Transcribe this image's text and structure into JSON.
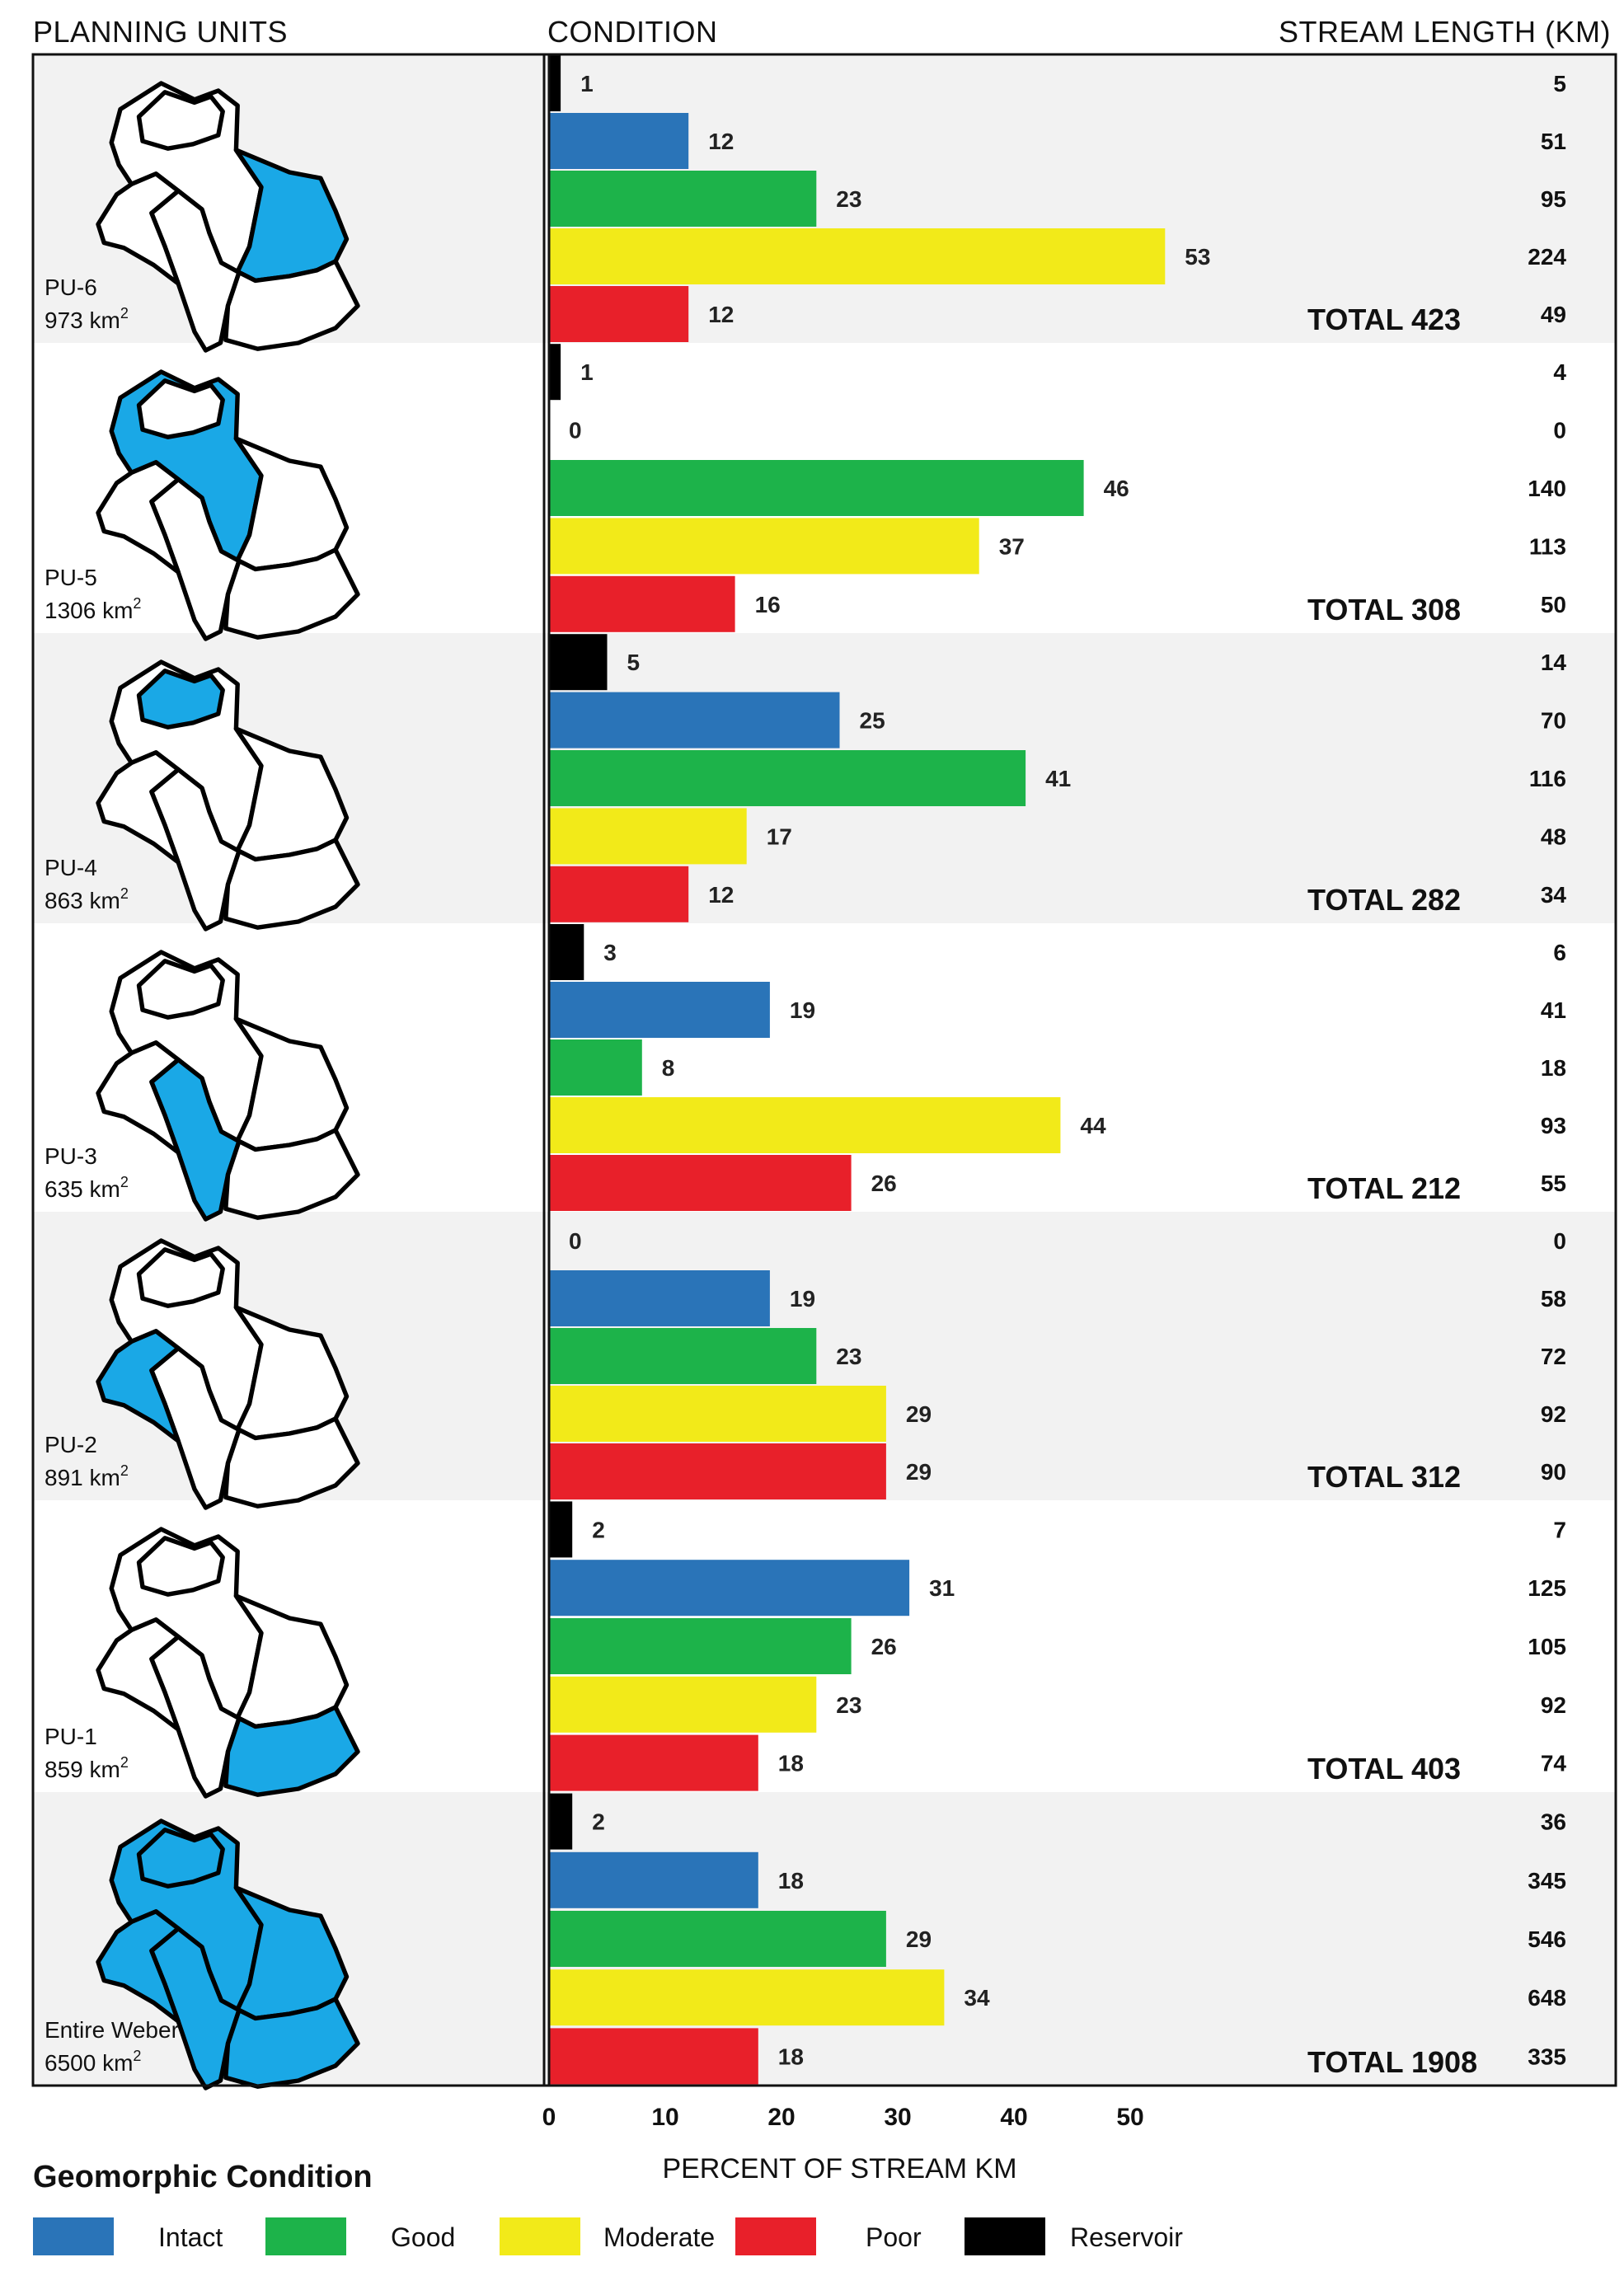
{
  "headers": {
    "planning_units": "PLANNING UNITS",
    "condition": "CONDITION",
    "stream_length": "STREAM LENGTH (KM)"
  },
  "colors": {
    "intact": "#2a74b8",
    "good": "#1db34a",
    "moderate": "#f2ea19",
    "poor": "#e8202a",
    "reservoir": "#000000",
    "highlight": "#1aa8e6",
    "row_shade": "#f2f2f2"
  },
  "chart_data": {
    "type": "bar",
    "orientation": "horizontal",
    "xlabel": "PERCENT OF STREAM KM",
    "xlim": [
      0,
      50
    ],
    "xticks": [
      0,
      10,
      20,
      30,
      40,
      50
    ],
    "categories": [
      "Reservoir",
      "Intact",
      "Good",
      "Moderate",
      "Poor"
    ],
    "groups": [
      {
        "name": "PU-6",
        "area": "973 km",
        "percent": [
          1,
          12,
          23,
          53,
          12
        ],
        "km": [
          5,
          51,
          95,
          224,
          49
        ],
        "total_label": "TOTAL 423"
      },
      {
        "name": "PU-5",
        "area": "1306 km",
        "percent": [
          1,
          0,
          46,
          37,
          16
        ],
        "km": [
          4,
          0,
          140,
          113,
          50
        ],
        "total_label": "TOTAL 308"
      },
      {
        "name": "PU-4",
        "area": "863 km",
        "percent": [
          5,
          25,
          41,
          17,
          12
        ],
        "km": [
          14,
          70,
          116,
          48,
          34
        ],
        "total_label": "TOTAL 282"
      },
      {
        "name": "PU-3",
        "area": "635 km",
        "percent": [
          3,
          19,
          8,
          44,
          26
        ],
        "km": [
          6,
          41,
          18,
          93,
          55
        ],
        "total_label": "TOTAL 212"
      },
      {
        "name": "PU-2",
        "area": "891 km",
        "percent": [
          0,
          19,
          23,
          29,
          29
        ],
        "km": [
          0,
          58,
          72,
          92,
          90
        ],
        "total_label": "TOTAL 312"
      },
      {
        "name": "PU-1",
        "area": "859 km",
        "percent": [
          2,
          31,
          26,
          23,
          18
        ],
        "km": [
          7,
          125,
          105,
          92,
          74
        ],
        "total_label": "TOTAL 403"
      },
      {
        "name": "Entire Weber",
        "area": "6500 km",
        "percent": [
          2,
          18,
          29,
          34,
          18
        ],
        "km": [
          36,
          345,
          546,
          648,
          335
        ],
        "total_label": "TOTAL 1908"
      }
    ]
  },
  "legend": {
    "title": "Geomorphic Condition",
    "items": [
      {
        "label": "Intact",
        "key": "intact"
      },
      {
        "label": "Good",
        "key": "good"
      },
      {
        "label": "Moderate",
        "key": "moderate"
      },
      {
        "label": "Poor",
        "key": "poor"
      },
      {
        "label": "Reservoir",
        "key": "reservoir"
      }
    ]
  },
  "map_highlight": [
    "pu6",
    "pu5",
    "pu4",
    "pu3",
    "pu2",
    "pu1",
    "all"
  ]
}
